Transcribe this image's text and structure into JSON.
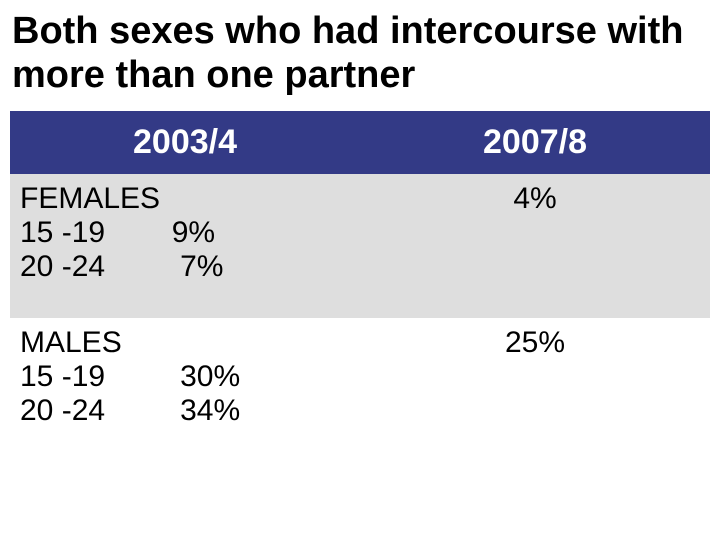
{
  "title": "Both sexes who had intercourse with more than one partner",
  "headers": {
    "col1": "2003/4",
    "col2": "2007/8"
  },
  "rows": {
    "females": {
      "group": "FEMALES",
      "line1": "15 -19        9%",
      "line2": "20 -24         7%",
      "col2": "4%"
    },
    "males": {
      "group": "MALES",
      "line1": "15 -19         30%",
      "line2": "20 -24         34%",
      "col2": "25%"
    }
  },
  "colors": {
    "header_bg": "#333a86",
    "header_text": "#ffffff",
    "row_alt_bg": "#dedede",
    "row_bg": "#ffffff",
    "text": "#000000"
  },
  "typography": {
    "title_fontsize": 38,
    "header_fontsize": 34,
    "cell_fontsize": 30,
    "font_family": "Arial"
  }
}
